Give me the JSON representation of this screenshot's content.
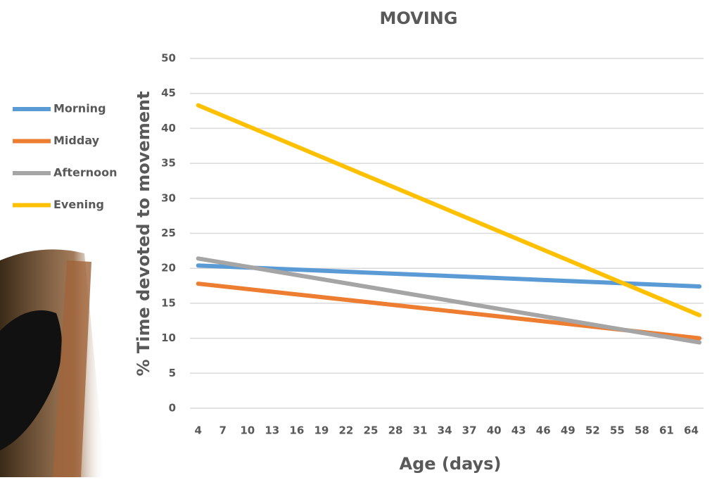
{
  "chart_data": {
    "type": "line",
    "title": "MOVING",
    "x_label": "Age (days)",
    "y_label": "% Time devoted to movement",
    "x": [
      4,
      65
    ],
    "series": [
      {
        "name": "Morning",
        "color": "#5b9bd5",
        "values": [
          20.4,
          17.4
        ]
      },
      {
        "name": "Midday",
        "color": "#ed7d31",
        "values": [
          17.8,
          10.0
        ]
      },
      {
        "name": "Afternoon",
        "color": "#a5a5a5",
        "values": [
          21.4,
          9.4
        ]
      },
      {
        "name": "Evening",
        "color": "#ffc000",
        "values": [
          43.3,
          13.3
        ]
      }
    ],
    "xlim": [
      3,
      65.5
    ],
    "xticks": [
      4,
      7,
      10,
      13,
      16,
      19,
      22,
      25,
      28,
      31,
      34,
      37,
      40,
      43,
      46,
      49,
      52,
      55,
      58,
      61,
      64
    ],
    "ylim": [
      0,
      50
    ],
    "yticks": [
      0,
      5,
      10,
      15,
      20,
      25,
      30,
      35,
      40,
      45,
      50
    ],
    "grid": true,
    "legend": "left"
  }
}
